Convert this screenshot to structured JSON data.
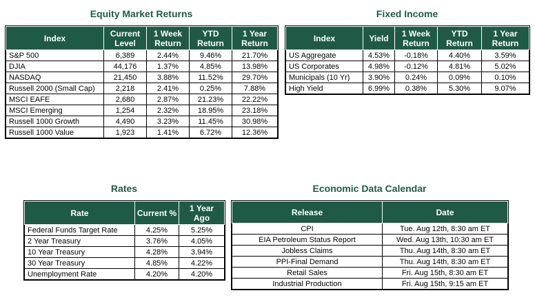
{
  "equity": {
    "title": "Equity Market Returns",
    "headers": [
      "Index",
      "Current Level",
      "1 Week Return",
      "YTD Return",
      "1 Year Return"
    ],
    "rows": [
      [
        "S&P 500",
        "6,389",
        "2.44%",
        "9.46%",
        "21.70%"
      ],
      [
        "DJIA",
        "44,176",
        "1.37%",
        "4.85%",
        "13.98%"
      ],
      [
        "NASDAQ",
        "21,450",
        "3.88%",
        "11.52%",
        "29.70%"
      ],
      [
        "Russell 2000 (Small Cap)",
        "2,218",
        "2.41%",
        "0.25%",
        "7.88%"
      ],
      [
        "MSCI EAFE",
        "2,680",
        "2.87%",
        "21.23%",
        "22.22%"
      ],
      [
        "MSCI Emerging",
        "1,254",
        "2.32%",
        "18.95%",
        "23.18%"
      ],
      [
        "Russell 1000 Growth",
        "4,490",
        "3.23%",
        "11.45%",
        "30.98%"
      ],
      [
        "Russell 1000 Value",
        "1,923",
        "1.41%",
        "6.72%",
        "12.36%"
      ]
    ]
  },
  "fixed": {
    "title": "Fixed Income",
    "headers": [
      "Index",
      "Yield",
      "1 Week Return",
      "YTD Return",
      "1 Year Return"
    ],
    "rows": [
      [
        "US Aggregate",
        "4.53%",
        "-0.18%",
        "4.40%",
        "3.59%"
      ],
      [
        "US Corporates",
        "4.98%",
        "-0.12%",
        "4.81%",
        "5.02%"
      ],
      [
        "Municipals (10 Yr)",
        "3.90%",
        "0.24%",
        "0.09%",
        "0.10%"
      ],
      [
        "High Yield",
        "6.99%",
        "0.38%",
        "5.30%",
        "9.07%"
      ]
    ]
  },
  "rates": {
    "title": "Rates",
    "headers": [
      "Rate",
      "Current %",
      "1 Year Ago"
    ],
    "rows": [
      [
        "Federal Funds Target Rate",
        "4.25%",
        "5.25%"
      ],
      [
        "2 Year Treasury",
        "3.76%",
        "4.05%"
      ],
      [
        "10 Year Treasury",
        "4.28%",
        "3.94%"
      ],
      [
        "30 Year Treasury",
        "4.85%",
        "4.22%"
      ],
      [
        "Unemployment Rate",
        "4.20%",
        "4.20%"
      ]
    ]
  },
  "calendar": {
    "title": "Economic Data Calendar",
    "headers": [
      "Release",
      "Date"
    ],
    "rows": [
      [
        "CPI",
        "Tue. Aug 12th, 8:30 am ET"
      ],
      [
        "EIA Petroleum Status Report",
        "Wed. Aug 13th, 10:30 am ET"
      ],
      [
        "Jobless Claims",
        "Thu. Aug 14th, 8:30 am ET"
      ],
      [
        "PPI-Final Demand",
        "Thu. Aug 14th, 8:30 am ET"
      ],
      [
        "Retail Sales",
        "Fri. Aug 15th, 8:30 am ET"
      ],
      [
        "Industrial Production",
        "Fri. Aug 15th, 9:15 am ET"
      ]
    ]
  }
}
